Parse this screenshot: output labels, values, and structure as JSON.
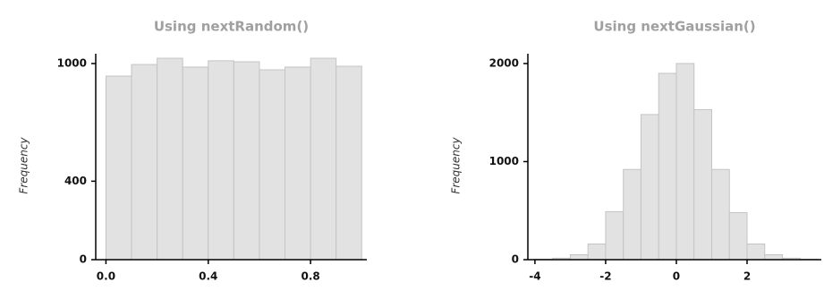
{
  "chart_data": [
    {
      "type": "histogram",
      "title": "Using nextRandom()",
      "y_label": "Frequency",
      "bins": [
        0.0,
        0.1,
        0.2,
        0.3,
        0.4,
        0.5,
        0.6,
        0.7,
        0.8,
        0.9,
        1.0
      ],
      "values": [
        936,
        995,
        1027,
        982,
        1014,
        1009,
        968,
        982,
        1027,
        986
      ],
      "color": "#e2e2e2",
      "xlim": [
        -0.04,
        1.02
      ],
      "xticks": [
        {
          "value": 0,
          "label": "0.0"
        },
        0.4,
        0.8
      ],
      "ylim": [
        0,
        1050
      ],
      "yticks": [
        0,
        400,
        1000
      ]
    },
    {
      "type": "histogram",
      "title": "Using nextGaussian()",
      "y_label": "Frequency",
      "bins": [
        -4,
        -3.5,
        -3,
        -2.5,
        -2,
        -1.5,
        -1,
        -0.5,
        0,
        0.5,
        1,
        1.5,
        2,
        2.5,
        3,
        3.5,
        4
      ],
      "values": [
        5,
        15,
        50,
        160,
        490,
        920,
        1480,
        1900,
        2000,
        1530,
        920,
        480,
        160,
        50,
        15,
        5
      ],
      "color": "#e2e2e2",
      "xlim": [
        -4.2,
        4.1
      ],
      "xticks": [
        -4,
        -2,
        0,
        2
      ],
      "ylim": [
        0,
        2100
      ],
      "yticks": [
        0,
        1000,
        2000
      ]
    }
  ]
}
